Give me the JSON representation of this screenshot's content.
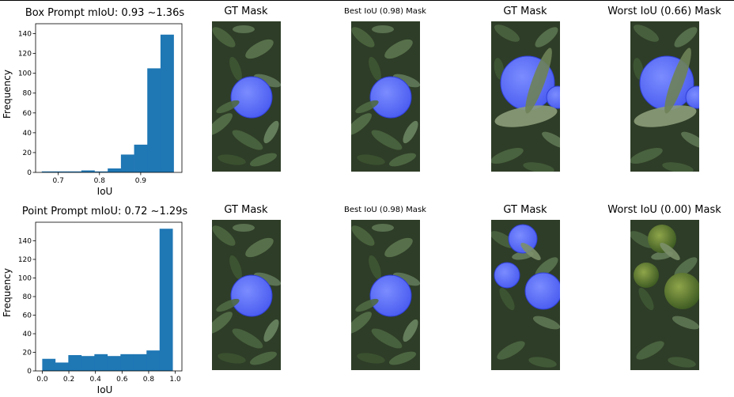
{
  "rows": [
    {
      "title": "Box Prompt mIoU: 0.93 ~1.36s",
      "images": [
        {
          "title": "GT Mask",
          "small": false,
          "scene": "single",
          "mask": true
        },
        {
          "title": "Best IoU (0.98) Mask",
          "small": true,
          "scene": "single",
          "mask": true
        },
        {
          "title": "GT Mask",
          "small": false,
          "scene": "leafy",
          "mask": true
        },
        {
          "title": "Worst IoU (0.66) Mask",
          "small": false,
          "scene": "leafy",
          "mask": true
        }
      ]
    },
    {
      "title": "Point Prompt mIoU: 0.72 ~1.29s",
      "images": [
        {
          "title": "GT Mask",
          "small": false,
          "scene": "single",
          "mask": true
        },
        {
          "title": "Best IoU (0.98) Mask",
          "small": true,
          "scene": "single",
          "mask": true
        },
        {
          "title": "GT Mask",
          "small": false,
          "scene": "cluster",
          "mask": true
        },
        {
          "title": "Worst IoU (0.00) Mask",
          "small": false,
          "scene": "cluster",
          "mask": false
        }
      ]
    }
  ],
  "colors": {
    "bar": "#1f77b4",
    "mask": "#4a5cf0",
    "foliage": "#2e3d27"
  },
  "chart_data": [
    {
      "type": "bar",
      "title": "Box Prompt mIoU: 0.93 ~1.36s",
      "xlabel": "IoU",
      "ylabel": "Frequency",
      "xlim": [
        0.645,
        1.0
      ],
      "ylim": [
        0,
        150
      ],
      "xticks": [
        0.7,
        0.8,
        0.9
      ],
      "yticks": [
        0,
        20,
        40,
        60,
        80,
        100,
        120,
        140
      ],
      "bin_edges": [
        0.66,
        0.692,
        0.724,
        0.756,
        0.788,
        0.82,
        0.852,
        0.884,
        0.916,
        0.948,
        0.98
      ],
      "values": [
        1,
        1,
        1,
        2,
        1,
        4,
        18,
        28,
        105,
        139
      ]
    },
    {
      "type": "bar",
      "title": "Point Prompt mIoU: 0.72 ~1.29s",
      "xlabel": "IoU",
      "ylabel": "Frequency",
      "xlim": [
        -0.05,
        1.05
      ],
      "ylim": [
        0,
        160
      ],
      "xticks": [
        0.0,
        0.2,
        0.4,
        0.6,
        0.8,
        1.0
      ],
      "yticks": [
        0,
        20,
        40,
        60,
        80,
        100,
        120,
        140
      ],
      "bin_edges": [
        0.0,
        0.098,
        0.196,
        0.294,
        0.392,
        0.49,
        0.588,
        0.686,
        0.784,
        0.882,
        0.98
      ],
      "values": [
        13,
        9,
        17,
        16,
        18,
        16,
        18,
        18,
        22,
        153
      ]
    }
  ]
}
